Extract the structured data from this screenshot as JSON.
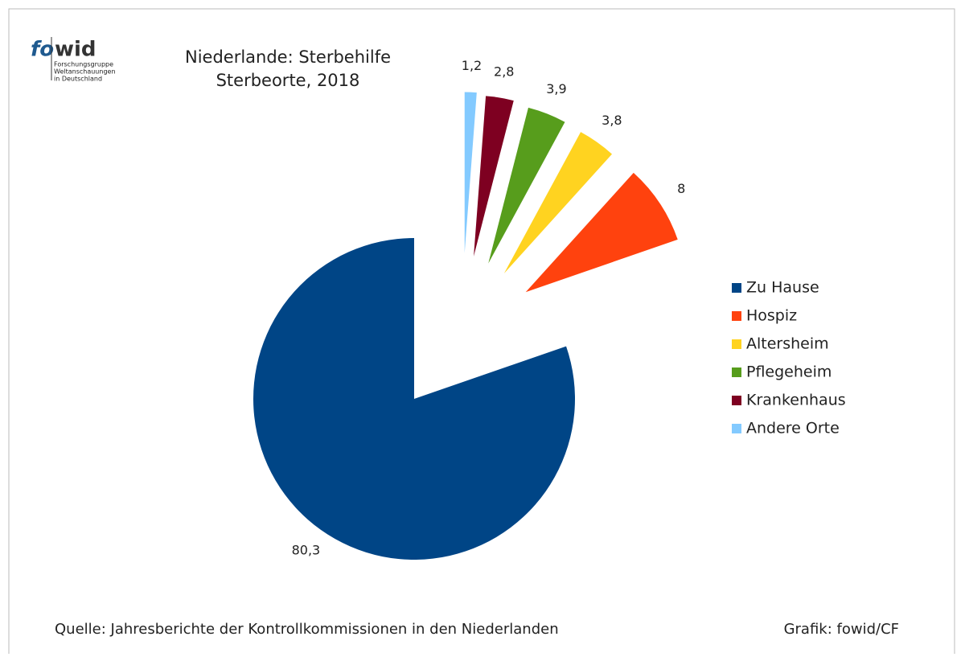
{
  "logo": {
    "first": "fo",
    "second": "wid",
    "lines": [
      "Forschungsgruppe",
      "Weltanschauungen",
      "in Deutschland"
    ]
  },
  "chart_data": {
    "type": "pie",
    "title": "Niederlande: Sterbehilfe",
    "subtitle": "Sterbeorte, 2018",
    "categories": [
      "Zu Hause",
      "Hospiz",
      "Altersheim",
      "Pflegeheim",
      "Krankenhaus",
      "Andere Orte"
    ],
    "values": [
      80.3,
      8,
      3.8,
      3.9,
      2.8,
      1.2
    ],
    "value_labels": [
      "80,3",
      "8",
      "3,8",
      "3,9",
      "2,8",
      "1,2"
    ],
    "colors": [
      "#004586",
      "#ff420e",
      "#ffd320",
      "#579d1c",
      "#7e0021",
      "#83caff"
    ],
    "legend": "right"
  },
  "source": "Quelle: Jahresberichte der Kontrollkommissionen in den Niederlanden",
  "credit": "Grafik: fowid/CF"
}
